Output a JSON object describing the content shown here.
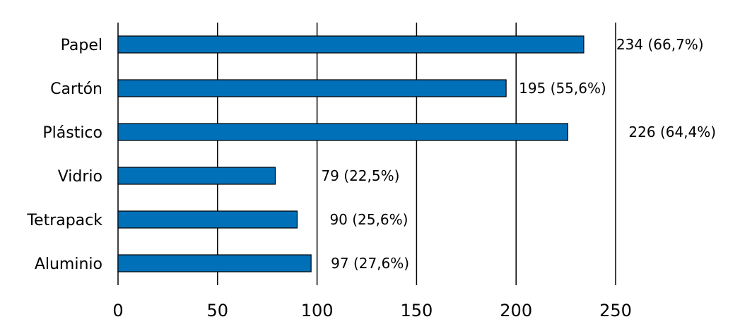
{
  "chart_data": {
    "type": "bar",
    "orientation": "horizontal",
    "categories": [
      "Papel",
      "Cartón",
      "Plástico",
      "Vidrio",
      "Tetrapack",
      "Aluminio"
    ],
    "values": [
      234,
      195,
      226,
      79,
      90,
      97
    ],
    "data_labels": [
      "234 (66,7%)",
      "195 (55,6%)",
      "226 (64,4%)",
      "79 (22,5%)",
      "90 (25,6%)",
      "97 (27,6%)"
    ],
    "xlim": [
      0,
      250
    ],
    "x_ticks": [
      0,
      50,
      100,
      150,
      200,
      250
    ],
    "x_tick_labels": [
      "0",
      "50",
      "100",
      "150",
      "200",
      "250"
    ],
    "grid": "vertical",
    "legend": "none",
    "title": "",
    "xlabel": "",
    "ylabel": "",
    "colors": {
      "bar": "#0070b8",
      "bar_border": "#000000",
      "grid": "#000000"
    }
  }
}
